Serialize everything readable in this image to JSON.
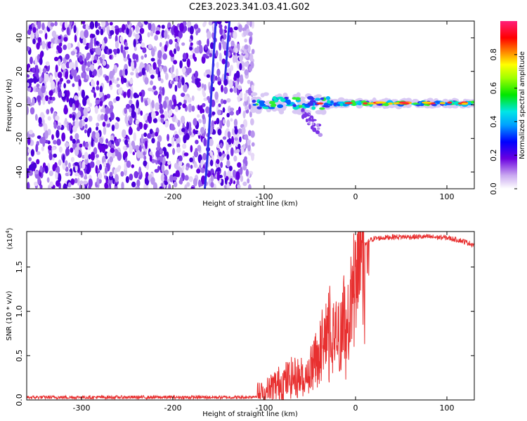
{
  "title": "C2E3.2023.341.03.41.G02",
  "chart_data": [
    {
      "type": "heatmap",
      "name": "spectrogram",
      "xlabel": "Height of straight line (km)",
      "ylabel": "Frequency (Hz)",
      "xlim": [
        -360,
        130
      ],
      "ylim": [
        -50,
        50
      ],
      "xticks": [
        -300,
        -200,
        -100,
        0,
        100
      ],
      "yticks": [
        -40,
        -20,
        0,
        20,
        40
      ],
      "noise_region_x": [
        -360,
        -112
      ],
      "signal_region_x": [
        -112,
        130
      ],
      "signal_frequency": 1,
      "meteor_streaks": [
        {
          "x": [
            -165,
            -162,
            -153
          ],
          "y": [
            -50,
            -30,
            50
          ]
        },
        {
          "x": [
            -143,
            -138
          ],
          "y": [
            15,
            50
          ]
        }
      ],
      "colorbar": {
        "label": "Normalized spectral amplitude",
        "range": [
          0.0,
          1.0
        ],
        "ticks": [
          0.0,
          0.2,
          0.4,
          0.6,
          0.8
        ]
      }
    },
    {
      "type": "line",
      "name": "snr",
      "xlabel": "Height of straight line (km)",
      "ylabel": "SNR (10 * v/v)",
      "exponent_label": "(x10",
      "exponent_power": "4",
      "exponent_close": ")",
      "xlim": [
        -360,
        130
      ],
      "ylim": [
        0,
        1.9
      ],
      "xticks": [
        -300,
        -200,
        -100,
        0,
        100
      ],
      "yticks": [
        0.0,
        0.5,
        1.0,
        1.5
      ],
      "color": "#e83030",
      "profile": {
        "x": [
          -360,
          -300,
          -200,
          -120,
          -100,
          -90,
          -80,
          -70,
          -60,
          -50,
          -40,
          -35,
          -30,
          -25,
          -20,
          -15,
          -10,
          -5,
          0,
          5,
          10,
          15,
          20,
          40,
          60,
          80,
          100,
          115,
          130
        ],
        "y": [
          0.03,
          0.03,
          0.03,
          0.03,
          0.05,
          0.15,
          0.2,
          0.25,
          0.25,
          0.35,
          0.6,
          0.7,
          0.9,
          0.8,
          0.7,
          0.9,
          1.0,
          1.2,
          1.4,
          1.6,
          1.75,
          1.8,
          1.82,
          1.84,
          1.84,
          1.84,
          1.83,
          1.8,
          1.75
        ]
      }
    }
  ]
}
